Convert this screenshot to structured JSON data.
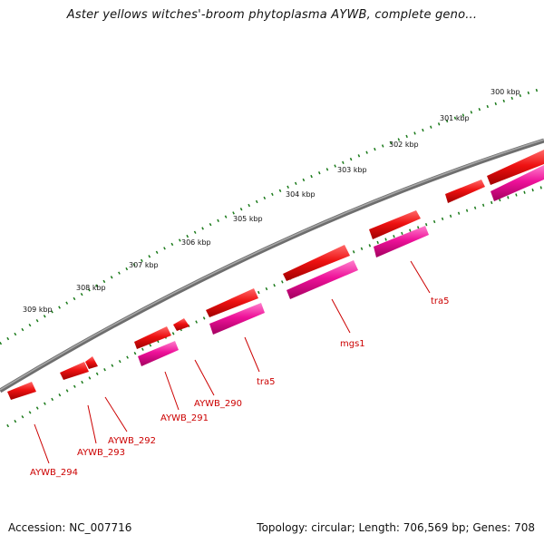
{
  "title": "Aster yellows witches'-broom phytoplasma AYWB, complete geno...",
  "footer": {
    "accession": "Accession: NC_007716",
    "summary": "Topology: circular; Length: 706,569 bp; Genes: 708"
  },
  "colors": {
    "backbone": "#888888",
    "forward_gene": "#ee1111",
    "cds": "#ee1199",
    "ruler_dots": "#1a7a1a",
    "gene_label": "#cc0000"
  },
  "ruler_labels": [
    "300 kbp",
    "301 kbp",
    "302 kbp",
    "303 kbp",
    "304 kbp",
    "305 kbp",
    "306 kbp",
    "307 kbp",
    "308 kbp",
    "309 kbp"
  ],
  "gene_labels": [
    "tra5",
    "mgs1",
    "tra5",
    "AYWB_290",
    "AYWB_291",
    "AYWB_292",
    "AYWB_293",
    "AYWB_294"
  ]
}
